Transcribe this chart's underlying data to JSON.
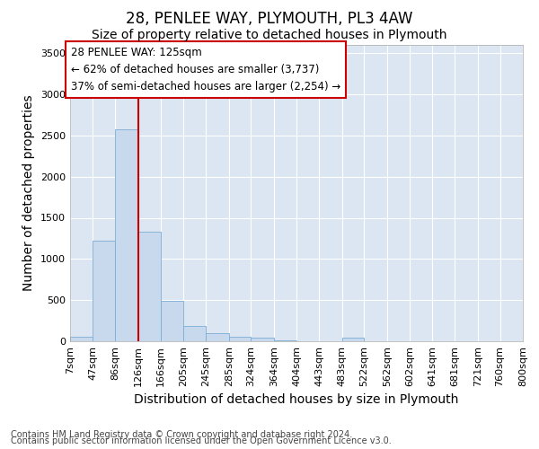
{
  "title": "28, PENLEE WAY, PLYMOUTH, PL3 4AW",
  "subtitle": "Size of property relative to detached houses in Plymouth",
  "xlabel": "Distribution of detached houses by size in Plymouth",
  "ylabel": "Number of detached properties",
  "footnote1": "Contains HM Land Registry data © Crown copyright and database right 2024.",
  "footnote2": "Contains public sector information licensed under the Open Government Licence v3.0.",
  "annotation_line1": "28 PENLEE WAY: 125sqm",
  "annotation_line2": "← 62% of detached houses are smaller (3,737)",
  "annotation_line3": "37% of semi-detached houses are larger (2,254) →",
  "bin_edges": [
    7,
    47,
    86,
    126,
    166,
    205,
    245,
    285,
    324,
    364,
    404,
    443,
    483,
    522,
    562,
    602,
    641,
    681,
    721,
    760,
    800
  ],
  "bar_heights": [
    60,
    1220,
    2580,
    1330,
    490,
    185,
    100,
    50,
    45,
    15,
    0,
    0,
    45,
    0,
    0,
    0,
    0,
    0,
    0,
    0
  ],
  "bar_color": "#c8d8ed",
  "bar_edge_color": "#7aadd4",
  "vline_color": "#cc0000",
  "vline_x": 126,
  "ylim": [
    0,
    3600
  ],
  "yticks": [
    0,
    500,
    1000,
    1500,
    2000,
    2500,
    3000,
    3500
  ],
  "plot_bg_color": "#dce6f2",
  "figure_bg_color": "#ffffff",
  "grid_color": "#ffffff",
  "annotation_box_facecolor": "#ffffff",
  "annotation_box_edgecolor": "#cc0000",
  "title_fontsize": 12,
  "subtitle_fontsize": 10,
  "axis_label_fontsize": 10,
  "tick_fontsize": 8,
  "annotation_fontsize": 8.5,
  "footnote_fontsize": 7
}
